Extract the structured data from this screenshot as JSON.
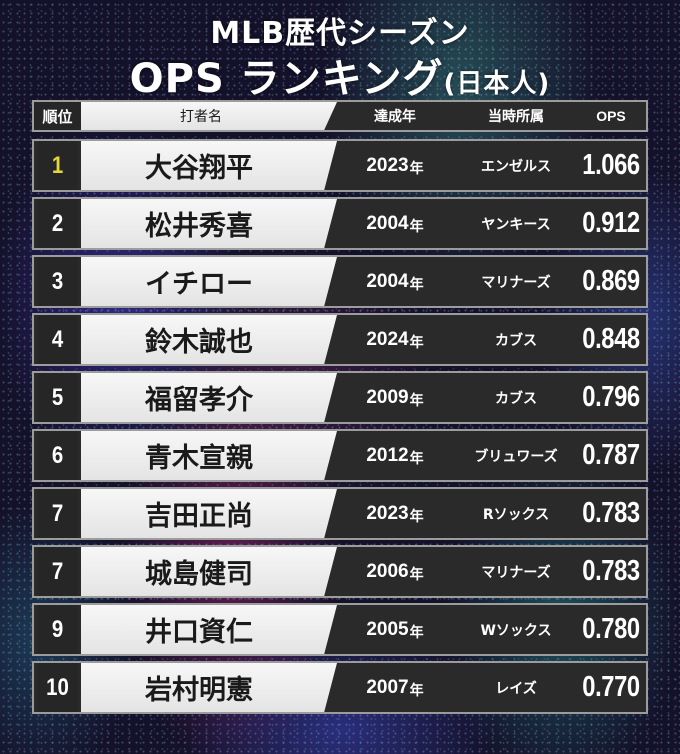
{
  "title": {
    "line1": "MLB歴代シーズン",
    "line2_main": "OPS ランキング",
    "line2_suffix": "(日本人)"
  },
  "table": {
    "headers": {
      "rank": "順位",
      "batter": "打者名",
      "year": "達成年",
      "team": "当時所属",
      "ops": "OPS"
    },
    "year_unit": "年",
    "rows": [
      {
        "rank": "1",
        "name": "大谷翔平",
        "year": "2023",
        "team": "エンゼルス",
        "ops": "1.066",
        "highlight": true
      },
      {
        "rank": "2",
        "name": "松井秀喜",
        "year": "2004",
        "team": "ヤンキース",
        "ops": "0.912"
      },
      {
        "rank": "3",
        "name": "イチロー",
        "year": "2004",
        "team": "マリナーズ",
        "ops": "0.869"
      },
      {
        "rank": "4",
        "name": "鈴木誠也",
        "year": "2024",
        "team": "カブス",
        "ops": "0.848"
      },
      {
        "rank": "5",
        "name": "福留孝介",
        "year": "2009",
        "team": "カブス",
        "ops": "0.796"
      },
      {
        "rank": "6",
        "name": "青木宣親",
        "year": "2012",
        "team": "ブリュワーズ",
        "ops": "0.787"
      },
      {
        "rank": "7",
        "name": "吉田正尚",
        "year": "2023",
        "team": "Rソックス",
        "ops": "0.783"
      },
      {
        "rank": "7",
        "name": "城島健司",
        "year": "2006",
        "team": "マリナーズ",
        "ops": "0.783"
      },
      {
        "rank": "9",
        "name": "井口資仁",
        "year": "2005",
        "team": "Wソックス",
        "ops": "0.780"
      },
      {
        "rank": "10",
        "name": "岩村明憲",
        "year": "2007",
        "team": "レイズ",
        "ops": "0.770"
      }
    ]
  },
  "colors": {
    "rank_highlight": "#e8d53a",
    "row_dark": "#2a2a2a",
    "name_light": "#eeeeee",
    "border": "#9c9c9c"
  }
}
